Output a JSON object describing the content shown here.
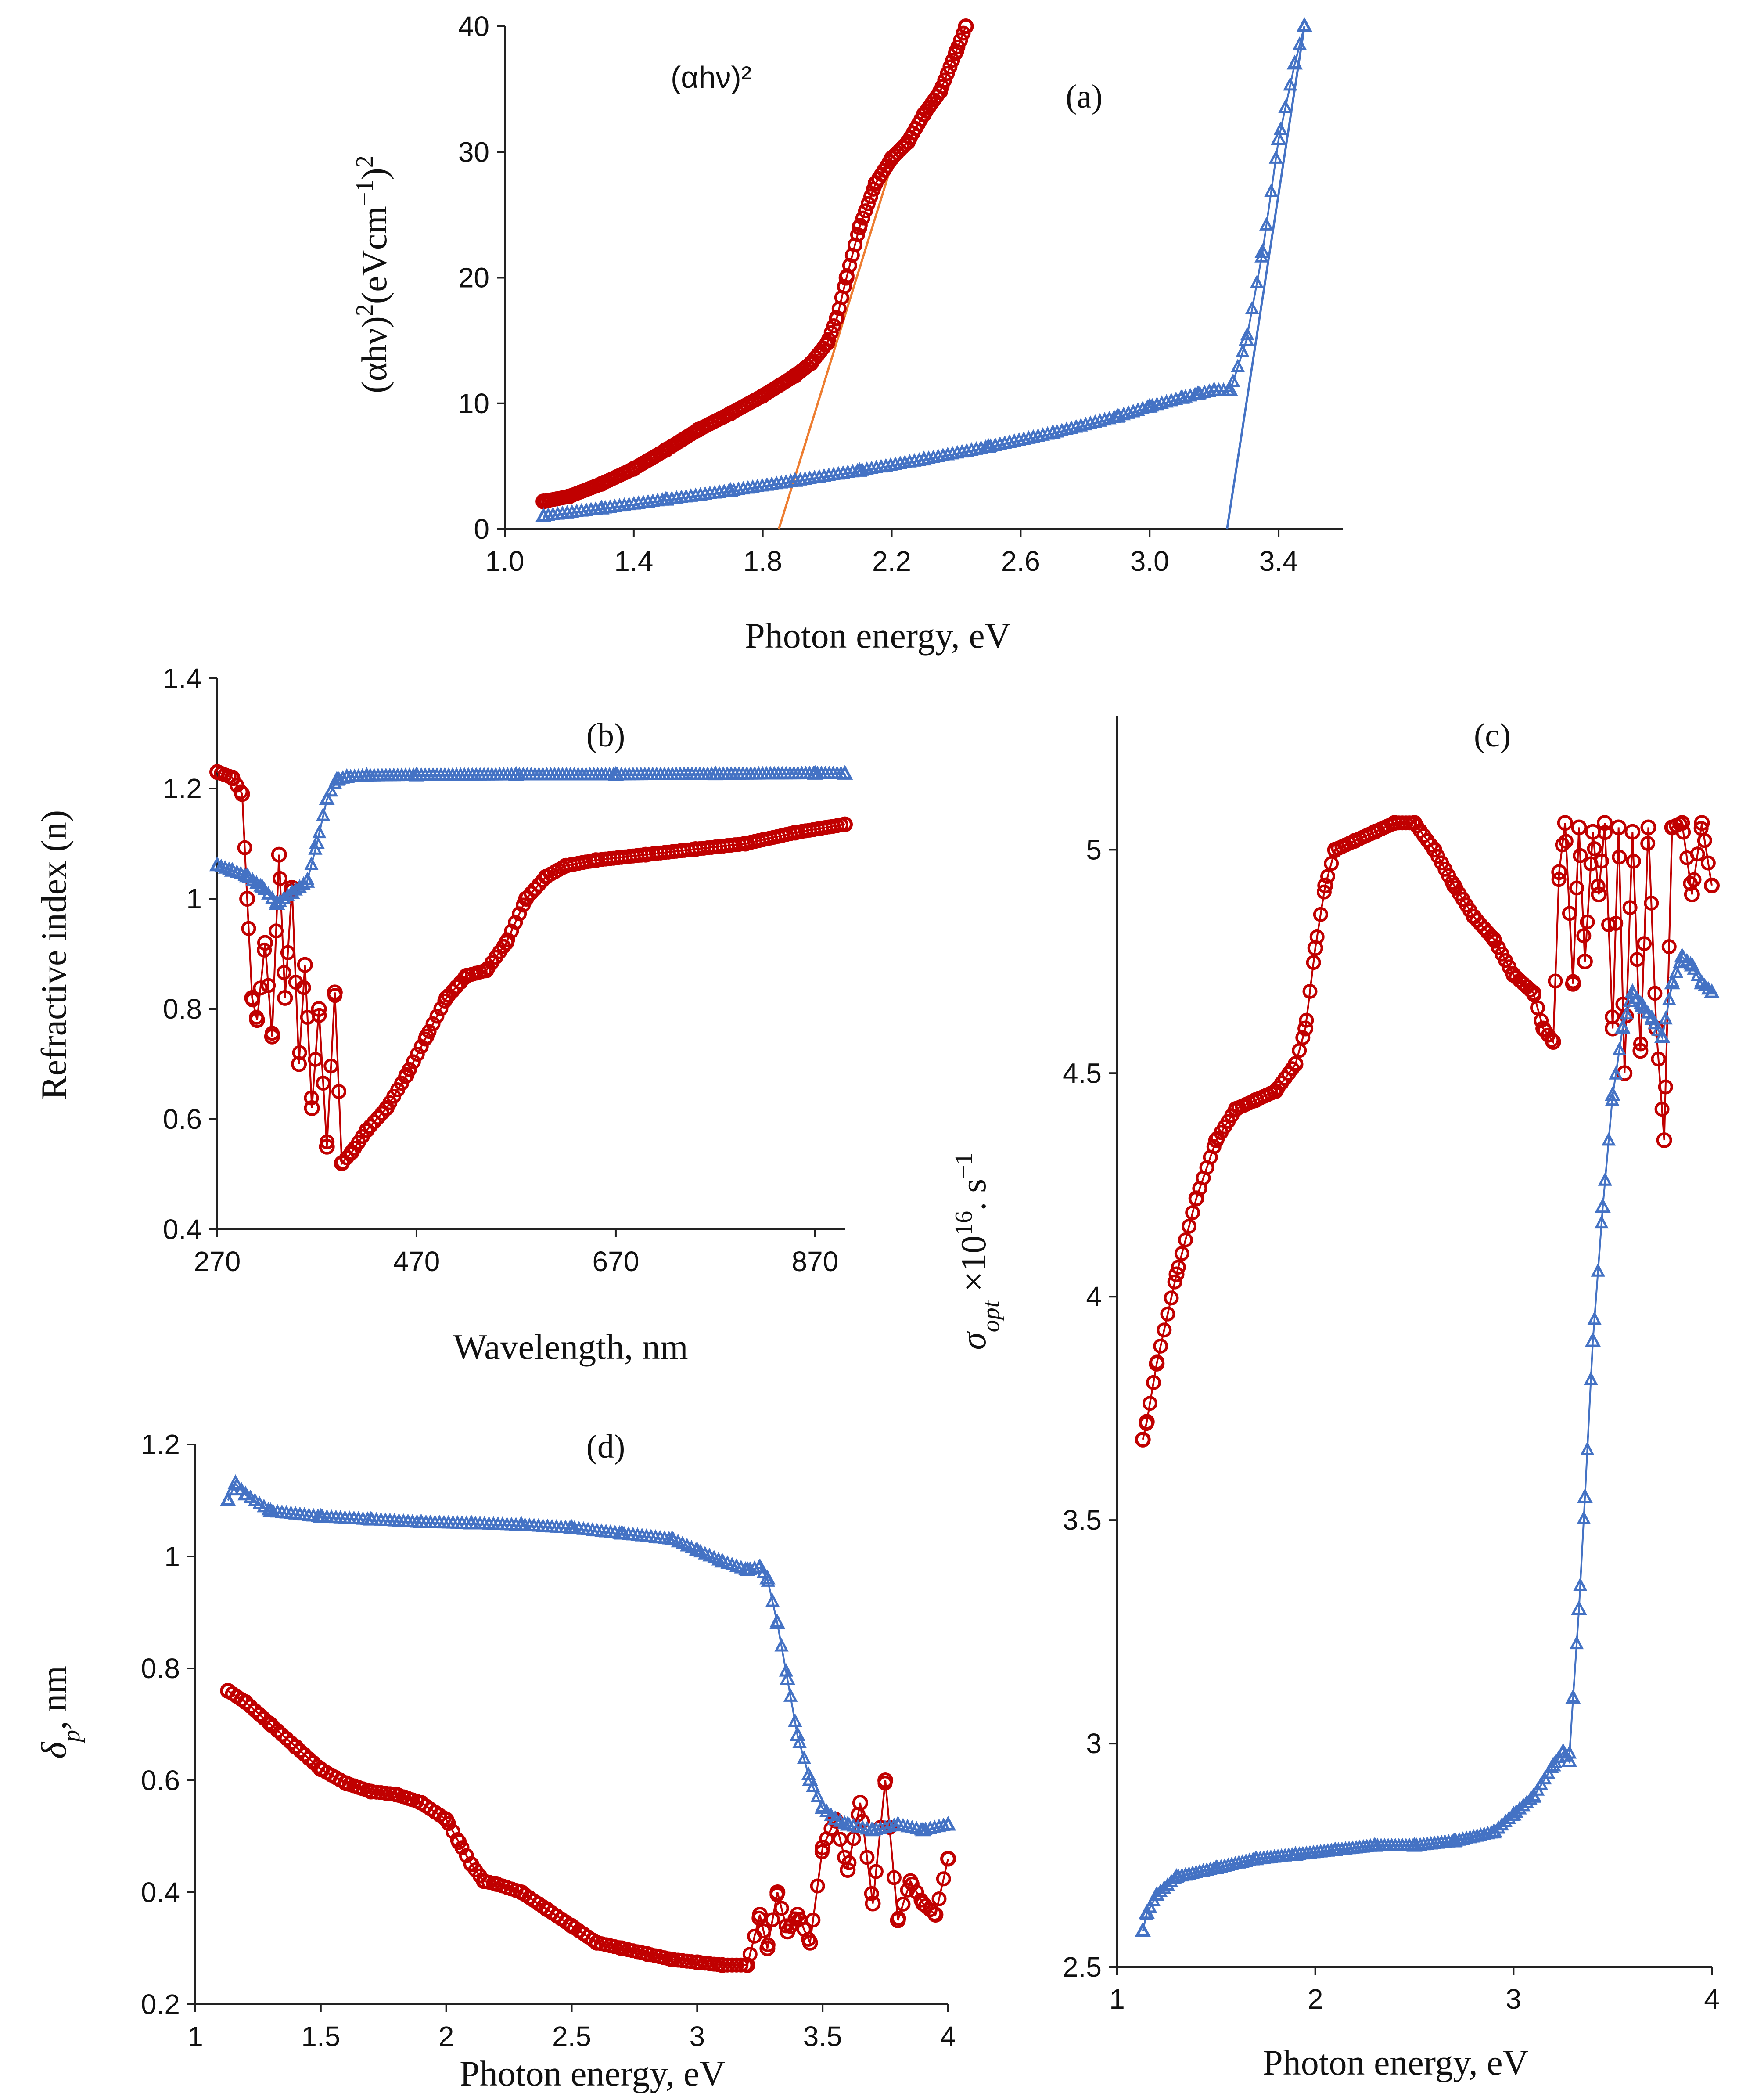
{
  "colors": {
    "red_series": "#c00000",
    "blue_series": "#4472c4",
    "fit_orange": "#ed7d31",
    "fit_blue": "#4472c4"
  },
  "chart_data": [
    {
      "id": "a",
      "type": "scatter",
      "panel_label": "(a)",
      "inner_title": "(αhν)²",
      "xlabel": "Photon energy, eV",
      "ylabel_parts": [
        "(αhν)",
        "2",
        "(eVcm",
        "−1",
        ")",
        "2"
      ],
      "xlim": [
        1.0,
        3.6
      ],
      "ylim": [
        0,
        40
      ],
      "xticks": [
        1.0,
        1.4,
        1.8,
        2.2,
        2.6,
        3.0,
        3.4
      ],
      "xtick_labels": [
        "1.0",
        "1.4",
        "1.8",
        "2.2",
        "2.6",
        "3.0",
        "3.4"
      ],
      "yticks": [
        0,
        10,
        20,
        30,
        40
      ],
      "ytick_labels": [
        "0",
        "10",
        "20",
        "30",
        "40"
      ],
      "series": [
        {
          "name": "red",
          "marker": "circle",
          "color": "#c00000",
          "x": [
            1.12,
            1.2,
            1.3,
            1.4,
            1.5,
            1.6,
            1.7,
            1.8,
            1.9,
            1.95,
            2.0,
            2.03,
            2.06,
            2.1,
            2.15,
            2.2,
            2.25,
            2.3,
            2.35,
            2.4,
            2.43
          ],
          "y": [
            2.2,
            2.6,
            3.6,
            4.8,
            6.3,
            7.9,
            9.2,
            10.6,
            12.2,
            13.2,
            14.8,
            16.8,
            20.0,
            24.0,
            27.5,
            29.5,
            30.8,
            33.0,
            34.8,
            38.0,
            40.0
          ]
        },
        {
          "name": "blue",
          "marker": "triangle",
          "color": "#4472c4",
          "x": [
            1.12,
            1.3,
            1.5,
            1.7,
            1.9,
            2.1,
            2.3,
            2.5,
            2.7,
            2.9,
            3.0,
            3.1,
            3.15,
            3.2,
            3.25,
            3.3,
            3.35,
            3.4,
            3.45,
            3.48
          ],
          "y": [
            1.0,
            1.6,
            2.3,
            3.0,
            3.8,
            4.6,
            5.5,
            6.5,
            7.6,
            8.9,
            9.7,
            10.4,
            10.7,
            11.0,
            11.0,
            15.0,
            22.0,
            31.0,
            37.0,
            40.0
          ]
        }
      ],
      "fit_lines": [
        {
          "color": "#ed7d31",
          "x": [
            1.85,
            2.2
          ],
          "y": [
            0,
            29.0
          ]
        },
        {
          "color": "#4472c4",
          "x": [
            3.24,
            3.48
          ],
          "y": [
            0,
            40.0
          ]
        }
      ]
    },
    {
      "id": "b",
      "type": "scatter",
      "panel_label": "(b)",
      "xlabel": "Wavelength, nm",
      "ylabel": "Refractive index (n)",
      "xlim": [
        270,
        900
      ],
      "ylim": [
        0.4,
        1.4
      ],
      "xticks": [
        270,
        470,
        670,
        870
      ],
      "xtick_labels": [
        "270",
        "470",
        "670",
        "870"
      ],
      "yticks": [
        0.4,
        0.6,
        0.8,
        1.0,
        1.2,
        1.4
      ],
      "ytick_labels": [
        "0.4",
        "0.6",
        "0.8",
        "1",
        "1.2",
        "1.4"
      ],
      "series": [
        {
          "name": "red",
          "marker": "circle",
          "color": "#c00000",
          "x": [
            270,
            285,
            295,
            300,
            305,
            310,
            318,
            325,
            332,
            338,
            345,
            352,
            358,
            365,
            372,
            380,
            388,
            395,
            405,
            420,
            440,
            460,
            480,
            500,
            520,
            540,
            560,
            580,
            600,
            620,
            650,
            700,
            750,
            800,
            850,
            900
          ],
          "y": [
            1.23,
            1.22,
            1.19,
            1.0,
            0.82,
            0.78,
            0.92,
            0.75,
            1.08,
            0.82,
            1.02,
            0.7,
            0.88,
            0.62,
            0.8,
            0.55,
            0.83,
            0.52,
            0.54,
            0.58,
            0.62,
            0.68,
            0.75,
            0.82,
            0.86,
            0.87,
            0.92,
            1.0,
            1.04,
            1.06,
            1.07,
            1.08,
            1.09,
            1.1,
            1.12,
            1.135
          ]
        },
        {
          "name": "blue",
          "marker": "triangle",
          "color": "#4472c4",
          "x": [
            270,
            285,
            300,
            315,
            330,
            345,
            360,
            370,
            380,
            390,
            400,
            420,
            470,
            570,
            670,
            770,
            870,
            900
          ],
          "y": [
            1.06,
            1.05,
            1.04,
            1.02,
            0.99,
            1.01,
            1.03,
            1.1,
            1.18,
            1.215,
            1.22,
            1.222,
            1.223,
            1.224,
            1.224,
            1.225,
            1.226,
            1.226
          ]
        }
      ],
      "fit_lines": []
    },
    {
      "id": "c",
      "type": "scatter",
      "panel_label": "(c)",
      "xlabel": "Photon energy, eV",
      "ylabel_parts": [
        "σ",
        "opt",
        " ×10",
        "16",
        ". s",
        "−1"
      ],
      "xlim": [
        1,
        4
      ],
      "ylim": [
        2.5,
        5.3
      ],
      "xticks": [
        1,
        2,
        3,
        4
      ],
      "xtick_labels": [
        "1",
        "2",
        "3",
        "4"
      ],
      "yticks": [
        2.5,
        3.0,
        3.5,
        4.0,
        4.5,
        5.0
      ],
      "ytick_labels": [
        "2.5",
        "3",
        "3.5",
        "4",
        "4.5",
        "5"
      ],
      "series": [
        {
          "name": "red",
          "marker": "circle",
          "color": "#c00000",
          "x": [
            1.13,
            1.15,
            1.2,
            1.3,
            1.4,
            1.5,
            1.6,
            1.7,
            1.8,
            1.9,
            1.95,
            2.0,
            2.05,
            2.1,
            2.2,
            2.3,
            2.4,
            2.5,
            2.6,
            2.7,
            2.8,
            2.9,
            3.0,
            3.1,
            3.15,
            3.2,
            3.23,
            3.26,
            3.3,
            3.33,
            3.36,
            3.4,
            3.43,
            3.46,
            3.5,
            3.53,
            3.56,
            3.6,
            3.64,
            3.68,
            3.72,
            3.76,
            3.8,
            3.85,
            3.9,
            3.95,
            4.0
          ],
          "y": [
            3.68,
            3.72,
            3.85,
            4.05,
            4.22,
            4.35,
            4.42,
            4.44,
            4.46,
            4.52,
            4.6,
            4.78,
            4.92,
            5.0,
            5.02,
            5.04,
            5.06,
            5.06,
            5.0,
            4.92,
            4.85,
            4.8,
            4.72,
            4.68,
            4.6,
            4.57,
            4.95,
            5.06,
            4.7,
            5.05,
            4.75,
            5.04,
            4.9,
            5.06,
            4.6,
            5.05,
            4.5,
            5.04,
            4.55,
            5.05,
            4.6,
            4.35,
            5.05,
            5.06,
            4.9,
            5.06,
            4.92
          ]
        },
        {
          "name": "blue",
          "marker": "triangle",
          "color": "#4472c4",
          "x": [
            1.13,
            1.15,
            1.2,
            1.3,
            1.5,
            1.7,
            1.9,
            2.1,
            2.3,
            2.5,
            2.7,
            2.9,
            3.0,
            3.1,
            3.2,
            3.25,
            3.28,
            3.3,
            3.33,
            3.36,
            3.4,
            3.45,
            3.5,
            3.55,
            3.6,
            3.65,
            3.7,
            3.75,
            3.8,
            3.85,
            3.9,
            3.95,
            4.0
          ],
          "y": [
            2.58,
            2.62,
            2.66,
            2.7,
            2.72,
            2.74,
            2.75,
            2.76,
            2.77,
            2.77,
            2.78,
            2.8,
            2.84,
            2.88,
            2.95,
            2.98,
            2.96,
            3.1,
            3.3,
            3.55,
            3.9,
            4.2,
            4.45,
            4.6,
            4.68,
            4.65,
            4.62,
            4.58,
            4.7,
            4.76,
            4.74,
            4.7,
            4.68
          ]
        }
      ],
      "fit_lines": []
    },
    {
      "id": "d",
      "type": "scatter",
      "panel_label": "(d)",
      "xlabel": "Photon energy, eV",
      "ylabel_parts": [
        "δ",
        "p",
        ", nm"
      ],
      "xlim": [
        1,
        4
      ],
      "ylim": [
        0.2,
        1.2
      ],
      "xticks": [
        1,
        1.5,
        2,
        2.5,
        3,
        3.5,
        4
      ],
      "xtick_labels": [
        "1",
        "1.5",
        "2",
        "2.5",
        "3",
        "3.5",
        "4"
      ],
      "yticks": [
        0.2,
        0.4,
        0.6,
        0.8,
        1.0,
        1.2
      ],
      "ytick_labels": [
        "0.2",
        "0.4",
        "0.6",
        "0.8",
        "1",
        "1.2"
      ],
      "series": [
        {
          "name": "red",
          "marker": "circle",
          "color": "#c00000",
          "x": [
            1.13,
            1.2,
            1.3,
            1.4,
            1.5,
            1.6,
            1.7,
            1.8,
            1.9,
            2.0,
            2.05,
            2.1,
            2.15,
            2.2,
            2.3,
            2.4,
            2.5,
            2.6,
            2.7,
            2.8,
            2.9,
            3.0,
            3.1,
            3.2,
            3.25,
            3.28,
            3.32,
            3.36,
            3.4,
            3.45,
            3.5,
            3.55,
            3.6,
            3.65,
            3.7,
            3.75,
            3.8,
            3.85,
            3.9,
            3.95,
            4.0
          ],
          "y": [
            0.76,
            0.74,
            0.7,
            0.66,
            0.62,
            0.595,
            0.58,
            0.575,
            0.56,
            0.53,
            0.49,
            0.45,
            0.42,
            0.415,
            0.4,
            0.37,
            0.34,
            0.31,
            0.3,
            0.29,
            0.28,
            0.275,
            0.27,
            0.27,
            0.36,
            0.3,
            0.4,
            0.33,
            0.36,
            0.31,
            0.48,
            0.53,
            0.44,
            0.56,
            0.38,
            0.6,
            0.35,
            0.42,
            0.38,
            0.36,
            0.46
          ]
        },
        {
          "name": "blue",
          "marker": "triangle",
          "color": "#4472c4",
          "x": [
            1.13,
            1.16,
            1.2,
            1.3,
            1.5,
            1.7,
            1.9,
            2.1,
            2.3,
            2.5,
            2.7,
            2.9,
            3.0,
            3.1,
            3.2,
            3.25,
            3.28,
            3.32,
            3.36,
            3.4,
            3.45,
            3.5,
            3.55,
            3.6,
            3.7,
            3.8,
            3.9,
            4.0
          ],
          "y": [
            1.1,
            1.13,
            1.11,
            1.08,
            1.07,
            1.065,
            1.06,
            1.058,
            1.055,
            1.05,
            1.04,
            1.03,
            1.01,
            0.99,
            0.975,
            0.98,
            0.96,
            0.88,
            0.78,
            0.68,
            0.6,
            0.55,
            0.53,
            0.52,
            0.51,
            0.52,
            0.51,
            0.52
          ]
        }
      ],
      "fit_lines": []
    }
  ]
}
